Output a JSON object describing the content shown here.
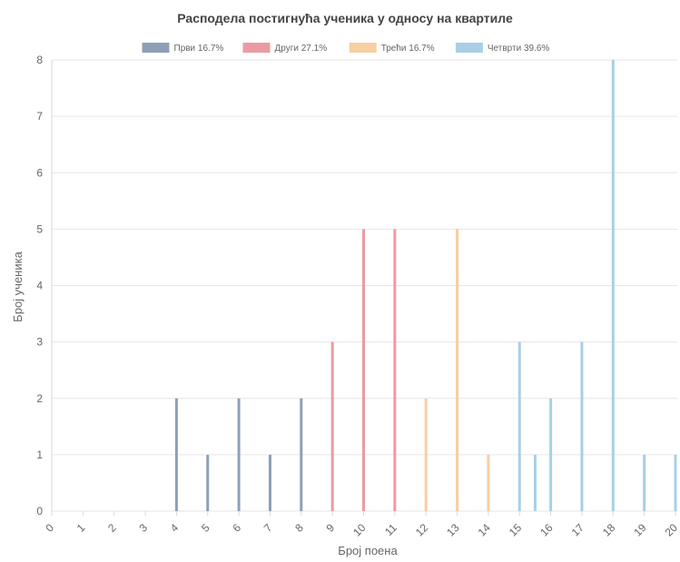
{
  "chart_data": {
    "type": "bar",
    "title": "Расподела постигнућа ученика у односу на квартиле",
    "xlabel": "Број поена",
    "ylabel": "Број ученика",
    "ylim": [
      0,
      8
    ],
    "yticks": [
      "0",
      "1",
      "2",
      "3",
      "4",
      "5",
      "6",
      "7",
      "8"
    ],
    "legend_position": "top",
    "grid": true,
    "series": [
      {
        "name": "Први 16.7%",
        "color": "#8da0b6",
        "points": [
          {
            "x": 4,
            "y": 2
          },
          {
            "x": 5,
            "y": 1
          },
          {
            "x": 6,
            "y": 2
          },
          {
            "x": 7,
            "y": 1
          },
          {
            "x": 8,
            "y": 2
          }
        ]
      },
      {
        "name": "Други 27.1%",
        "color": "#ec9aa2",
        "points": [
          {
            "x": 9,
            "y": 3
          },
          {
            "x": 10,
            "y": 5
          },
          {
            "x": 11,
            "y": 5
          }
        ]
      },
      {
        "name": "Трећи 16.7%",
        "color": "#f7cfa0",
        "points": [
          {
            "x": 12,
            "y": 2
          },
          {
            "x": 13,
            "y": 5
          },
          {
            "x": 14,
            "y": 1
          }
        ]
      },
      {
        "name": "Четврти 39.6%",
        "color": "#a9cfe6",
        "points": [
          {
            "x": 15,
            "y": 3
          },
          {
            "x": 15.5,
            "y": 1
          },
          {
            "x": 16,
            "y": 2
          },
          {
            "x": 17,
            "y": 3
          },
          {
            "x": 18,
            "y": 8
          },
          {
            "x": 19,
            "y": 1
          },
          {
            "x": 20,
            "y": 1
          }
        ]
      }
    ],
    "xticks": [
      "0",
      "1",
      "2",
      "3",
      "4",
      "5",
      "6",
      "7",
      "8",
      "9",
      "10",
      "11",
      "12",
      "13",
      "14",
      "15",
      "16",
      "17",
      "18",
      "19",
      "20"
    ]
  }
}
